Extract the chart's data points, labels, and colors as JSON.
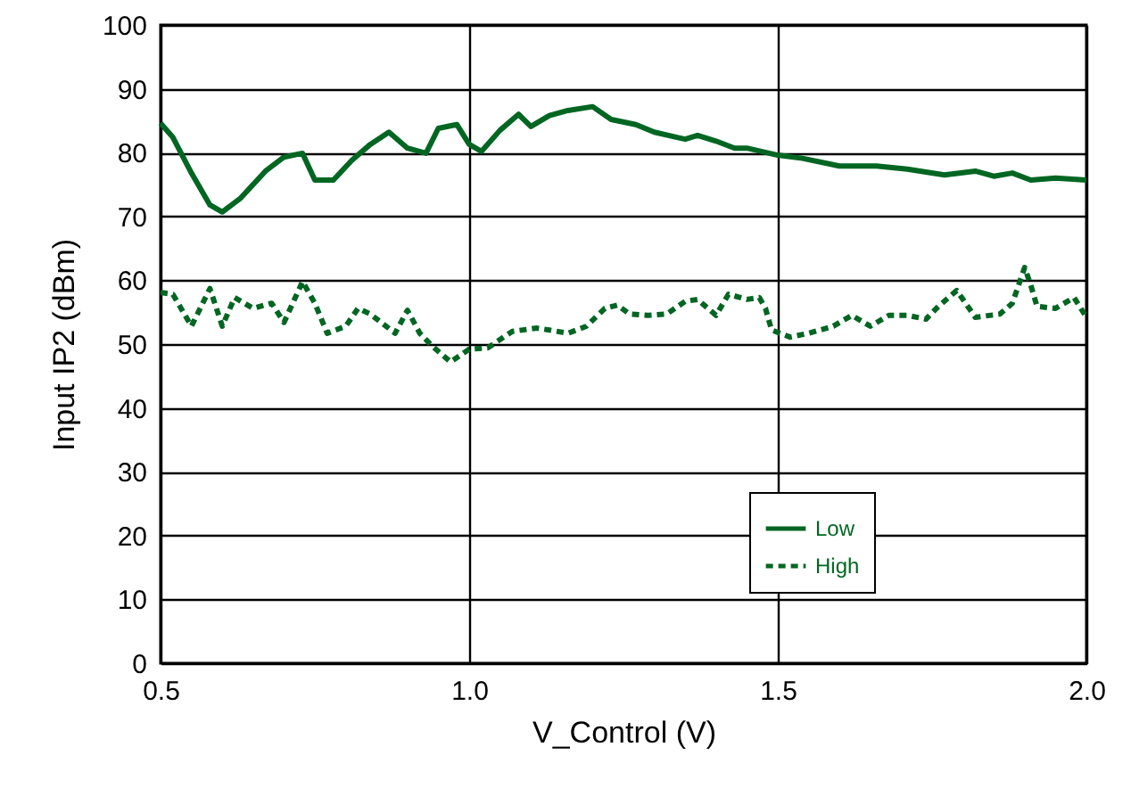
{
  "chart_data": {
    "type": "line",
    "xlabel": "V_Control (V)",
    "ylabel": "Input IP2 (dBm)",
    "xlim": [
      0.5,
      2.0
    ],
    "xticks": [
      {
        "value": 0.5,
        "label": "0.5"
      },
      {
        "value": 1.0,
        "label": "1.0"
      },
      {
        "value": 1.5,
        "label": "1.5"
      },
      {
        "value": 2.0,
        "label": "2.0"
      }
    ],
    "ylim": [
      0,
      100
    ],
    "yticks": [
      0,
      10,
      20,
      30,
      40,
      50,
      60,
      70,
      80,
      90,
      100
    ],
    "grid": true,
    "legend": "bottom right",
    "series": [
      {
        "name": "Low",
        "color": "#006622",
        "line_style": "solid",
        "x": [
          0.5,
          0.52,
          0.55,
          0.58,
          0.6,
          0.63,
          0.67,
          0.7,
          0.73,
          0.75,
          0.78,
          0.81,
          0.84,
          0.87,
          0.9,
          0.93,
          0.95,
          0.98,
          1.0,
          1.02,
          1.05,
          1.08,
          1.1,
          1.13,
          1.16,
          1.2,
          1.23,
          1.27,
          1.3,
          1.35,
          1.37,
          1.4,
          1.43,
          1.45,
          1.5,
          1.54,
          1.6,
          1.66,
          1.71,
          1.77,
          1.82,
          1.85,
          1.88,
          1.91,
          1.95,
          2.0
        ],
        "values": [
          84.6,
          82.4,
          76.8,
          71.8,
          70.7,
          72.9,
          77.1,
          79.3,
          79.9,
          75.7,
          75.7,
          78.8,
          81.3,
          83.2,
          80.7,
          79.9,
          83.8,
          84.4,
          81.3,
          80.2,
          83.5,
          86.0,
          84.1,
          85.8,
          86.6,
          87.2,
          85.2,
          84.4,
          83.2,
          82.1,
          82.7,
          81.8,
          80.7,
          80.7,
          79.6,
          79.1,
          77.9,
          77.9,
          77.4,
          76.5,
          77.1,
          76.3,
          76.8,
          75.7,
          76.0,
          75.7
        ]
      },
      {
        "name": "High",
        "color": "#006622",
        "line_style": "dashed",
        "x": [
          0.5,
          0.52,
          0.55,
          0.58,
          0.6,
          0.62,
          0.65,
          0.68,
          0.7,
          0.73,
          0.75,
          0.77,
          0.8,
          0.82,
          0.84,
          0.88,
          0.9,
          0.92,
          0.94,
          0.97,
          1.0,
          1.03,
          1.07,
          1.11,
          1.13,
          1.16,
          1.19,
          1.22,
          1.24,
          1.26,
          1.29,
          1.32,
          1.35,
          1.37,
          1.4,
          1.42,
          1.45,
          1.47,
          1.48,
          1.49,
          1.52,
          1.55,
          1.59,
          1.62,
          1.65,
          1.68,
          1.71,
          1.74,
          1.76,
          1.79,
          1.82,
          1.86,
          1.88,
          1.9,
          1.91,
          1.92,
          1.95,
          1.98,
          2.0
        ],
        "values": [
          58.1,
          57.8,
          52.8,
          58.7,
          52.8,
          57.3,
          55.6,
          56.4,
          53.4,
          59.8,
          56.4,
          51.7,
          52.8,
          55.6,
          54.7,
          51.7,
          55.3,
          51.7,
          49.7,
          47.2,
          49.2,
          49.4,
          52.0,
          52.5,
          52.2,
          51.7,
          52.8,
          55.6,
          56.1,
          54.7,
          54.5,
          54.7,
          56.7,
          57.0,
          54.5,
          57.8,
          57.0,
          57.3,
          55.6,
          52.2,
          51.1,
          51.7,
          52.8,
          54.5,
          52.8,
          54.5,
          54.5,
          53.9,
          55.9,
          58.4,
          54.2,
          54.7,
          56.4,
          62.0,
          59.2,
          55.9,
          55.6,
          57.3,
          54.2
        ]
      }
    ]
  }
}
